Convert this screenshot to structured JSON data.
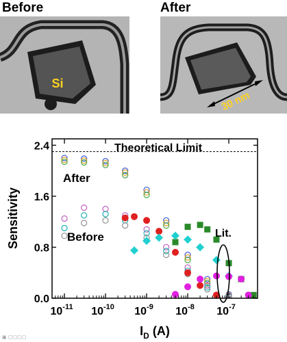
{
  "panels": {
    "before": {
      "title": "Before",
      "core_label": "Si"
    },
    "after": {
      "title": "After",
      "dimension_label": "30 nm"
    }
  },
  "colors": {
    "label_yellow": "#ffd21f",
    "tem_background": "#b4b4b4",
    "tem_oxide": "#1c1c1c",
    "tem_core": "#545454"
  },
  "chart_data": {
    "type": "scatter",
    "xlabel_main": "I",
    "xlabel_sub": "D",
    "xlabel_unit": " (A)",
    "ylabel": "Sensitivity",
    "x_scale": "log",
    "xlim": [
      5e-12,
      5e-07
    ],
    "ylim": [
      0,
      2.5
    ],
    "x_ticks": [
      1e-11,
      1e-10,
      1e-09,
      1e-08,
      1e-07
    ],
    "x_tick_labels": [
      {
        "base": "10",
        "exp": "-11"
      },
      {
        "base": "10",
        "exp": "-10"
      },
      {
        "base": "10",
        "exp": "-9"
      },
      {
        "base": "10",
        "exp": "-8"
      },
      {
        "base": "10",
        "exp": "-7"
      }
    ],
    "y_ticks": [
      0.0,
      0.8,
      1.6,
      2.4
    ],
    "y_tick_labels": [
      "0.0",
      "0.8",
      "1.6",
      "2.4"
    ],
    "theoretical_limit": {
      "value": 2.3,
      "label": "Theoretical Limit"
    },
    "annotations": {
      "after": "After",
      "before": "Before",
      "lit": "Lit."
    },
    "series": [
      {
        "marker": "circle_open",
        "color": "#3c5ad8",
        "group": "After",
        "x": [
          1e-11,
          3e-11,
          1e-10,
          3e-10,
          1e-09,
          3e-09,
          1e-08,
          3e-08,
          1e-07
        ],
        "y": [
          2.2,
          2.19,
          2.15,
          2.0,
          1.7,
          1.22,
          0.68,
          0.3,
          0.06
        ]
      },
      {
        "marker": "circle_open",
        "color": "#e0a020",
        "group": "After",
        "x": [
          1e-11,
          3e-11,
          1e-10,
          3e-10,
          1e-09,
          3e-09,
          1e-08,
          3e-08,
          1e-07
        ],
        "y": [
          2.17,
          2.16,
          2.12,
          1.97,
          1.66,
          1.18,
          0.64,
          0.27,
          0.05
        ]
      },
      {
        "marker": "circle_open",
        "color": "#4aa84a",
        "group": "After",
        "x": [
          1e-11,
          3e-11,
          1e-10,
          3e-10,
          1e-09,
          3e-09,
          1e-08,
          3e-08,
          1e-07
        ],
        "y": [
          2.14,
          2.13,
          2.09,
          1.93,
          1.62,
          1.14,
          0.6,
          0.24,
          0.04
        ]
      },
      {
        "marker": "circle_open",
        "color": "#c060c0",
        "group": "Before",
        "x": [
          1e-11,
          3e-11,
          1e-10,
          3e-10,
          1e-09,
          3e-09,
          1e-08,
          3e-08,
          1e-07
        ],
        "y": [
          1.25,
          1.42,
          1.4,
          1.3,
          1.08,
          0.8,
          0.48,
          0.2,
          0.04
        ]
      },
      {
        "marker": "circle_open",
        "color": "#20b0b0",
        "group": "Before",
        "x": [
          1e-11,
          3e-11,
          1e-10,
          3e-10,
          1e-09,
          3e-09,
          1e-08,
          3e-08,
          1e-07
        ],
        "y": [
          1.1,
          1.3,
          1.32,
          1.22,
          1.02,
          0.74,
          0.43,
          0.17,
          0.03
        ]
      },
      {
        "marker": "circle_open",
        "color": "#909090",
        "group": "Before",
        "x": [
          1e-11,
          3e-11,
          1e-10,
          3e-10,
          1e-09,
          3e-09,
          1e-08,
          3e-08,
          1e-07
        ],
        "y": [
          0.98,
          1.18,
          1.22,
          1.14,
          0.95,
          0.68,
          0.38,
          0.14,
          0.02
        ]
      },
      {
        "marker": "circle",
        "color": "#e02020",
        "group": "Lit.",
        "x": [
          3e-10,
          5e-10,
          1e-09,
          2e-09,
          5e-09,
          1e-08,
          2e-08,
          5e-08
        ],
        "y": [
          1.26,
          1.28,
          1.22,
          1.05,
          0.72,
          0.4,
          0.2,
          0.05
        ]
      },
      {
        "marker": "square",
        "color": "#2a8a2a",
        "group": "Lit.",
        "x": [
          5e-09,
          1e-08,
          2e-08,
          3e-08,
          5e-08,
          1e-07,
          2e-07,
          4e-07
        ],
        "y": [
          0.88,
          1.12,
          1.15,
          1.08,
          0.92,
          0.55,
          0.3,
          0.05
        ]
      },
      {
        "marker": "diamond",
        "color": "#20d0d0",
        "group": "Lit.",
        "x": [
          5e-10,
          1e-09,
          2e-09,
          5e-09,
          1e-08,
          2e-08,
          5e-08,
          1e-07
        ],
        "y": [
          0.75,
          0.9,
          0.95,
          0.98,
          0.92,
          0.8,
          0.6,
          0.35
        ]
      },
      {
        "marker": "circle",
        "color": "#e020e0",
        "group": "Lit.",
        "x": [
          5e-09,
          1e-08,
          2e-08,
          5e-08,
          1e-07,
          2e-07,
          3e-07
        ],
        "y": [
          0.06,
          0.18,
          0.3,
          0.35,
          0.34,
          0.3,
          0.05
        ]
      }
    ]
  }
}
